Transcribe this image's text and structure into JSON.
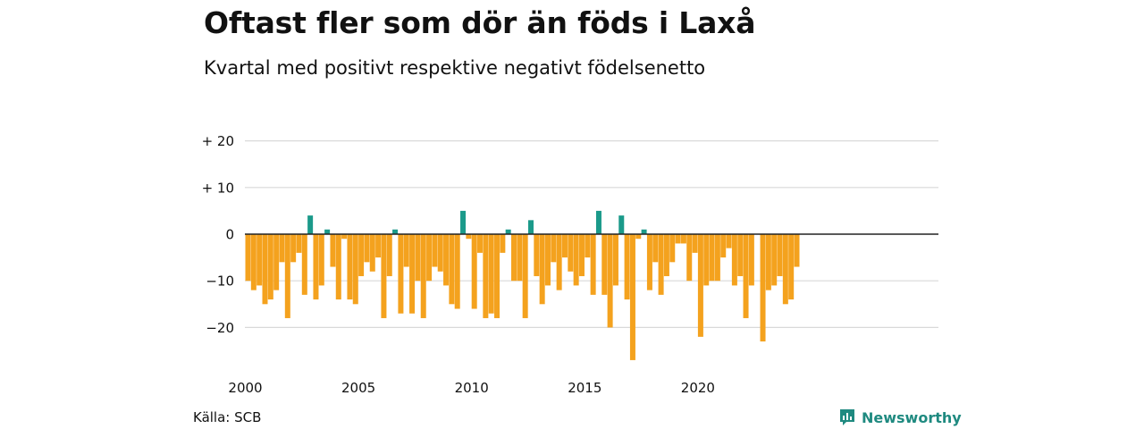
{
  "title": "Oftast fler som dör än föds i Laxå",
  "subtitle": "Kvartal med positivt respektive negativt födelsenetto",
  "source": "Källa: SCB",
  "brand": "Newsworthy",
  "colors": {
    "positive": "#1b9a8a",
    "negative": "#f4a21e",
    "grid": "#d9d9d9",
    "brand": "#1f8a80"
  },
  "chart_data": {
    "type": "bar",
    "title": "Oftast fler som dör än föds i Laxå",
    "subtitle": "Kvartal med positivt respektive negativt födelsenetto",
    "xlabel": "",
    "ylabel": "",
    "ylim": [
      -28,
      20
    ],
    "yticks": [
      20,
      10,
      0,
      -10,
      -20
    ],
    "ytick_labels": [
      "+ 20",
      "+ 10",
      "0",
      "−10",
      "−20"
    ],
    "xticks": [
      "2000",
      "2005",
      "2010",
      "2015",
      "2020"
    ],
    "grid": true,
    "start_year": 2000,
    "values": [
      -10,
      -12,
      -11,
      -15,
      -14,
      -12,
      -6,
      -18,
      -6,
      -4,
      -13,
      4,
      -14,
      -11,
      1,
      -7,
      -14,
      -1,
      -14,
      -15,
      -9,
      -6,
      -8,
      -5,
      -18,
      -9,
      1,
      -17,
      -7,
      -17,
      -10,
      -18,
      -10,
      -7,
      -8,
      -11,
      -15,
      -16,
      5,
      -1,
      -16,
      -4,
      -18,
      -17,
      -18,
      -4,
      1,
      -10,
      -10,
      -18,
      3,
      -9,
      -15,
      -11,
      -6,
      -12,
      -5,
      -8,
      -11,
      -9,
      -5,
      -13,
      5,
      -13,
      -20,
      -11,
      4,
      -14,
      -27,
      -1,
      1,
      -12,
      -6,
      -13,
      -9,
      -6,
      -2,
      -2,
      -10,
      -4,
      -22,
      -11,
      -10,
      -10,
      -5,
      -3,
      -11,
      -9,
      -18,
      -11,
      0,
      -23,
      -12,
      -11,
      -9,
      -15,
      -14,
      -7
    ]
  }
}
